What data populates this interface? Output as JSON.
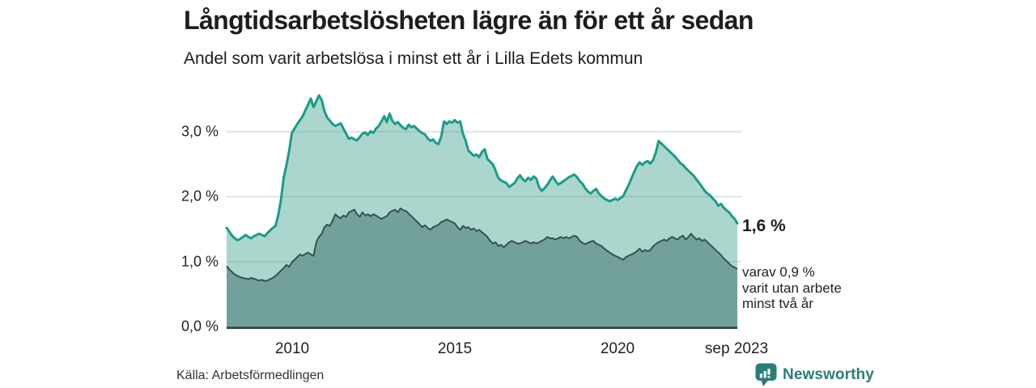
{
  "header": {
    "title": "Långtidsarbetslösheten lägre än för ett år sedan",
    "subtitle": "Andel som varit arbetslösa i minst ett år i Lilla Edets kommun"
  },
  "chart_data": {
    "type": "area",
    "title": "Långtidsarbetslösheten lägre än för ett år sedan",
    "subtitle": "Andel som varit arbetslösa i minst ett år i Lilla Edets kommun",
    "unit": "%",
    "frequency": "monthly",
    "x_start_year": 2008,
    "x_end_label": "sep 2023",
    "xtick_labels": [
      "2010",
      "2015",
      "2020",
      "sep 2023"
    ],
    "ytick_labels": [
      "0,0 %",
      "1,0 %",
      "2,0 %",
      "3,0 %"
    ],
    "grid_values": [
      1,
      2,
      3
    ],
    "ylim": [
      0,
      3.7
    ],
    "grid_on": true,
    "axis_color": "#3e4b48",
    "gridline_color": "rgba(125,135,133,0.45)",
    "series": [
      {
        "name": "arbetslösa minst ett år",
        "color": "#1a9c8a",
        "fill": "#abd6ce",
        "end_value_label": "1,6 %",
        "values": [
          1.52,
          1.46,
          1.4,
          1.36,
          1.33,
          1.35,
          1.38,
          1.41,
          1.38,
          1.36,
          1.39,
          1.41,
          1.43,
          1.41,
          1.39,
          1.44,
          1.48,
          1.52,
          1.55,
          1.72,
          1.95,
          2.29,
          2.48,
          2.7,
          2.98,
          3.05,
          3.12,
          3.18,
          3.24,
          3.33,
          3.42,
          3.51,
          3.38,
          3.47,
          3.56,
          3.49,
          3.32,
          3.22,
          3.17,
          3.12,
          3.09,
          3.11,
          3.13,
          3.05,
          2.97,
          2.89,
          2.91,
          2.88,
          2.87,
          2.92,
          2.97,
          2.99,
          2.95,
          3.01,
          2.98,
          3.05,
          3.09,
          3.16,
          3.24,
          3.15,
          3.28,
          3.17,
          3.12,
          3.15,
          3.1,
          3.06,
          3.04,
          3.11,
          3.07,
          3.09,
          3.05,
          3.01,
          2.98,
          2.96,
          2.9,
          2.86,
          2.88,
          2.83,
          2.81,
          2.93,
          3.16,
          3.12,
          3.16,
          3.14,
          3.18,
          3.14,
          3.16,
          2.97,
          2.86,
          2.71,
          2.67,
          2.63,
          2.65,
          2.61,
          2.69,
          2.73,
          2.58,
          2.54,
          2.5,
          2.4,
          2.29,
          2.25,
          2.23,
          2.21,
          2.15,
          2.18,
          2.21,
          2.28,
          2.33,
          2.27,
          2.24,
          2.29,
          2.26,
          2.31,
          2.28,
          2.15,
          2.09,
          2.13,
          2.18,
          2.25,
          2.31,
          2.25,
          2.19,
          2.21,
          2.24,
          2.27,
          2.3,
          2.32,
          2.34,
          2.3,
          2.24,
          2.2,
          2.13,
          2.08,
          2.05,
          2.09,
          2.12,
          2.05,
          2.01,
          1.97,
          1.95,
          1.93,
          1.95,
          1.97,
          1.95,
          1.98,
          2.01,
          2.1,
          2.18,
          2.28,
          2.38,
          2.47,
          2.53,
          2.49,
          2.53,
          2.55,
          2.51,
          2.57,
          2.68,
          2.86,
          2.82,
          2.78,
          2.74,
          2.7,
          2.66,
          2.62,
          2.57,
          2.52,
          2.49,
          2.44,
          2.4,
          2.36,
          2.32,
          2.26,
          2.21,
          2.15,
          2.09,
          2.05,
          2.02,
          1.97,
          1.93,
          1.86,
          1.89,
          1.83,
          1.79,
          1.76,
          1.7,
          1.66,
          1.59
        ]
      },
      {
        "name": "varav utan arbete minst två år",
        "color": "#33534e",
        "fill": "#72a09a",
        "end_value_label": "0,9 %",
        "values": [
          0.93,
          0.88,
          0.84,
          0.8,
          0.78,
          0.76,
          0.75,
          0.74,
          0.73,
          0.75,
          0.74,
          0.72,
          0.71,
          0.72,
          0.7,
          0.71,
          0.73,
          0.75,
          0.78,
          0.82,
          0.86,
          0.9,
          0.95,
          0.92,
          0.99,
          1.03,
          1.07,
          1.11,
          1.09,
          1.12,
          1.14,
          1.11,
          1.09,
          1.3,
          1.38,
          1.43,
          1.53,
          1.57,
          1.55,
          1.63,
          1.73,
          1.69,
          1.67,
          1.71,
          1.69,
          1.76,
          1.78,
          1.8,
          1.73,
          1.69,
          1.76,
          1.71,
          1.73,
          1.7,
          1.73,
          1.71,
          1.68,
          1.66,
          1.68,
          1.7,
          1.76,
          1.78,
          1.8,
          1.76,
          1.82,
          1.79,
          1.78,
          1.74,
          1.7,
          1.66,
          1.62,
          1.58,
          1.53,
          1.56,
          1.52,
          1.49,
          1.53,
          1.55,
          1.57,
          1.61,
          1.63,
          1.65,
          1.63,
          1.61,
          1.59,
          1.53,
          1.49,
          1.55,
          1.52,
          1.53,
          1.49,
          1.51,
          1.47,
          1.49,
          1.45,
          1.42,
          1.38,
          1.32,
          1.28,
          1.3,
          1.24,
          1.26,
          1.22,
          1.26,
          1.3,
          1.32,
          1.3,
          1.28,
          1.28,
          1.3,
          1.32,
          1.3,
          1.28,
          1.3,
          1.28,
          1.3,
          1.32,
          1.34,
          1.38,
          1.36,
          1.36,
          1.34,
          1.36,
          1.38,
          1.36,
          1.38,
          1.36,
          1.38,
          1.4,
          1.38,
          1.32,
          1.29,
          1.27,
          1.29,
          1.31,
          1.32,
          1.28,
          1.26,
          1.24,
          1.2,
          1.17,
          1.14,
          1.11,
          1.09,
          1.07,
          1.05,
          1.03,
          1.07,
          1.09,
          1.11,
          1.13,
          1.16,
          1.2,
          1.15,
          1.18,
          1.16,
          1.18,
          1.24,
          1.27,
          1.3,
          1.32,
          1.34,
          1.32,
          1.36,
          1.38,
          1.36,
          1.34,
          1.38,
          1.4,
          1.34,
          1.38,
          1.43,
          1.38,
          1.34,
          1.36,
          1.32,
          1.34,
          1.3,
          1.26,
          1.22,
          1.18,
          1.14,
          1.1,
          1.05,
          1.01,
          0.97,
          0.93,
          0.91,
          0.89
        ]
      }
    ],
    "end_label_total": "1,6 %",
    "annotation_lines": [
      "varav 0,9 %",
      "varit utan arbete",
      "minst två år"
    ]
  },
  "footer": {
    "source": "Källa: Arbetsförmedlingen",
    "brand": "Newsworthy"
  }
}
